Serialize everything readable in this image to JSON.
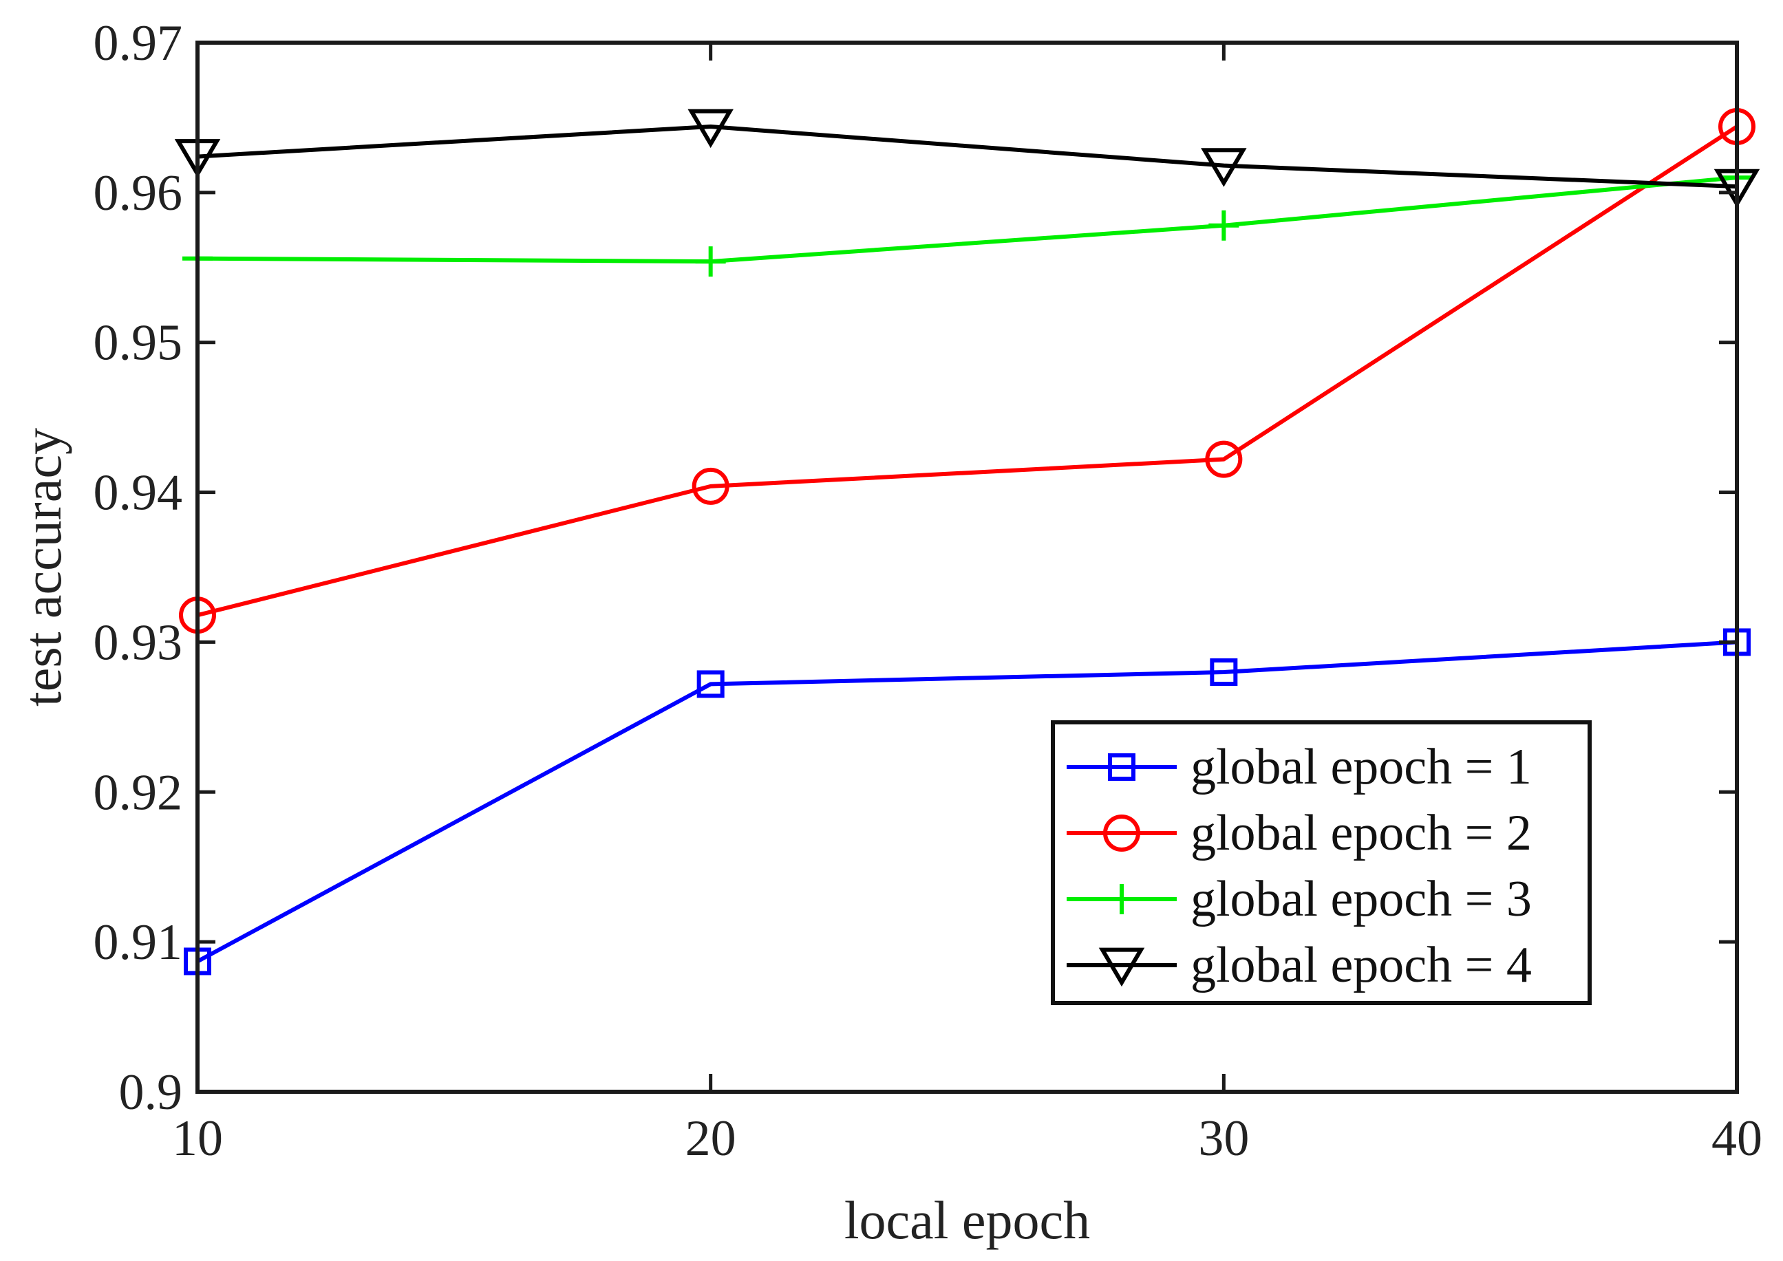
{
  "chart_data": {
    "type": "line",
    "xlabel": "local epoch",
    "ylabel": "test accuracy",
    "x": [
      10,
      20,
      30,
      40
    ],
    "xlim": [
      10,
      40
    ],
    "ylim": [
      0.9,
      0.97
    ],
    "xticks": [
      "10",
      "20",
      "30",
      "40"
    ],
    "yticks": [
      "0.9",
      "0.91",
      "0.92",
      "0.93",
      "0.94",
      "0.95",
      "0.96",
      "0.97"
    ],
    "grid": false,
    "legend_position": "bottom-right",
    "series": [
      {
        "name": "global epoch = 1",
        "color": "#0000ff",
        "marker": "square",
        "values": [
          0.9087,
          0.9272,
          0.928,
          0.93
        ]
      },
      {
        "name": "global epoch = 2",
        "color": "#ff0000",
        "marker": "circle",
        "values": [
          0.9318,
          0.9404,
          0.9422,
          0.9644
        ]
      },
      {
        "name": "global epoch = 3",
        "color": "#00ee00",
        "marker": "plus",
        "values": [
          0.9556,
          0.9554,
          0.9578,
          0.961
        ]
      },
      {
        "name": "global epoch = 4",
        "color": "#000000",
        "marker": "triangle-down",
        "values": [
          0.9624,
          0.9644,
          0.9618,
          0.9604
        ]
      }
    ]
  }
}
